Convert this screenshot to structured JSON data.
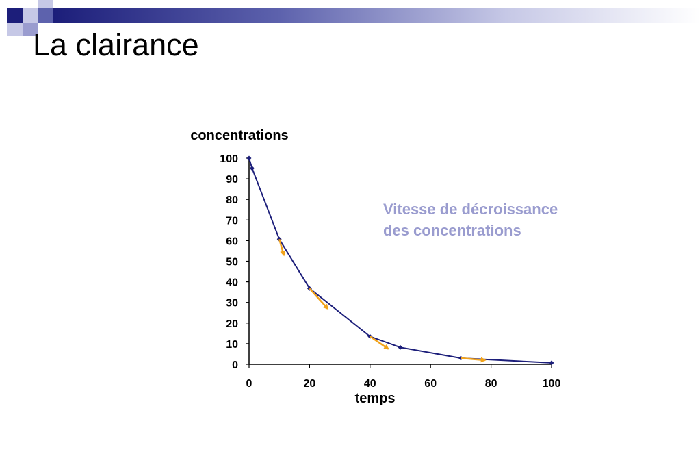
{
  "slide": {
    "title": "La clairance",
    "annotation": [
      "Vitesse de décroissance",
      "des concentrations"
    ]
  },
  "colors": {
    "line": "#1c1e7a",
    "tangent_arrows": "#f2a31b",
    "annotation": "#9a9ccf",
    "decor_dark": "#1c1e7a",
    "decor_mid": "#5d62ad",
    "decor_light": "#c6c8e6"
  },
  "chart_data": {
    "type": "line",
    "title": "",
    "xlabel": "temps",
    "ylabel": "concentrations",
    "xlim": [
      0,
      100
    ],
    "ylim": [
      0,
      100
    ],
    "xticks": [
      0,
      20,
      40,
      60,
      80,
      100
    ],
    "yticks": [
      0,
      10,
      20,
      30,
      40,
      50,
      60,
      70,
      80,
      90,
      100
    ],
    "grid": false,
    "series": [
      {
        "x": [
          0,
          1,
          10,
          20,
          40,
          50,
          70,
          100
        ],
        "y": [
          100,
          95.1,
          60.7,
          36.8,
          13.5,
          8.2,
          3.0,
          0.7
        ]
      }
    ],
    "annotations": [
      {
        "type": "tangent-arrow",
        "from": [
          10,
          60.7
        ],
        "to": [
          11.5,
          53
        ]
      },
      {
        "type": "tangent-arrow",
        "from": [
          20,
          36.8
        ],
        "to": [
          26,
          27
        ]
      },
      {
        "type": "tangent-arrow",
        "from": [
          40,
          13.5
        ],
        "to": [
          46,
          7.5
        ]
      },
      {
        "type": "tangent-arrow",
        "from": [
          70,
          3.0
        ],
        "to": [
          78,
          2.0
        ]
      }
    ]
  }
}
